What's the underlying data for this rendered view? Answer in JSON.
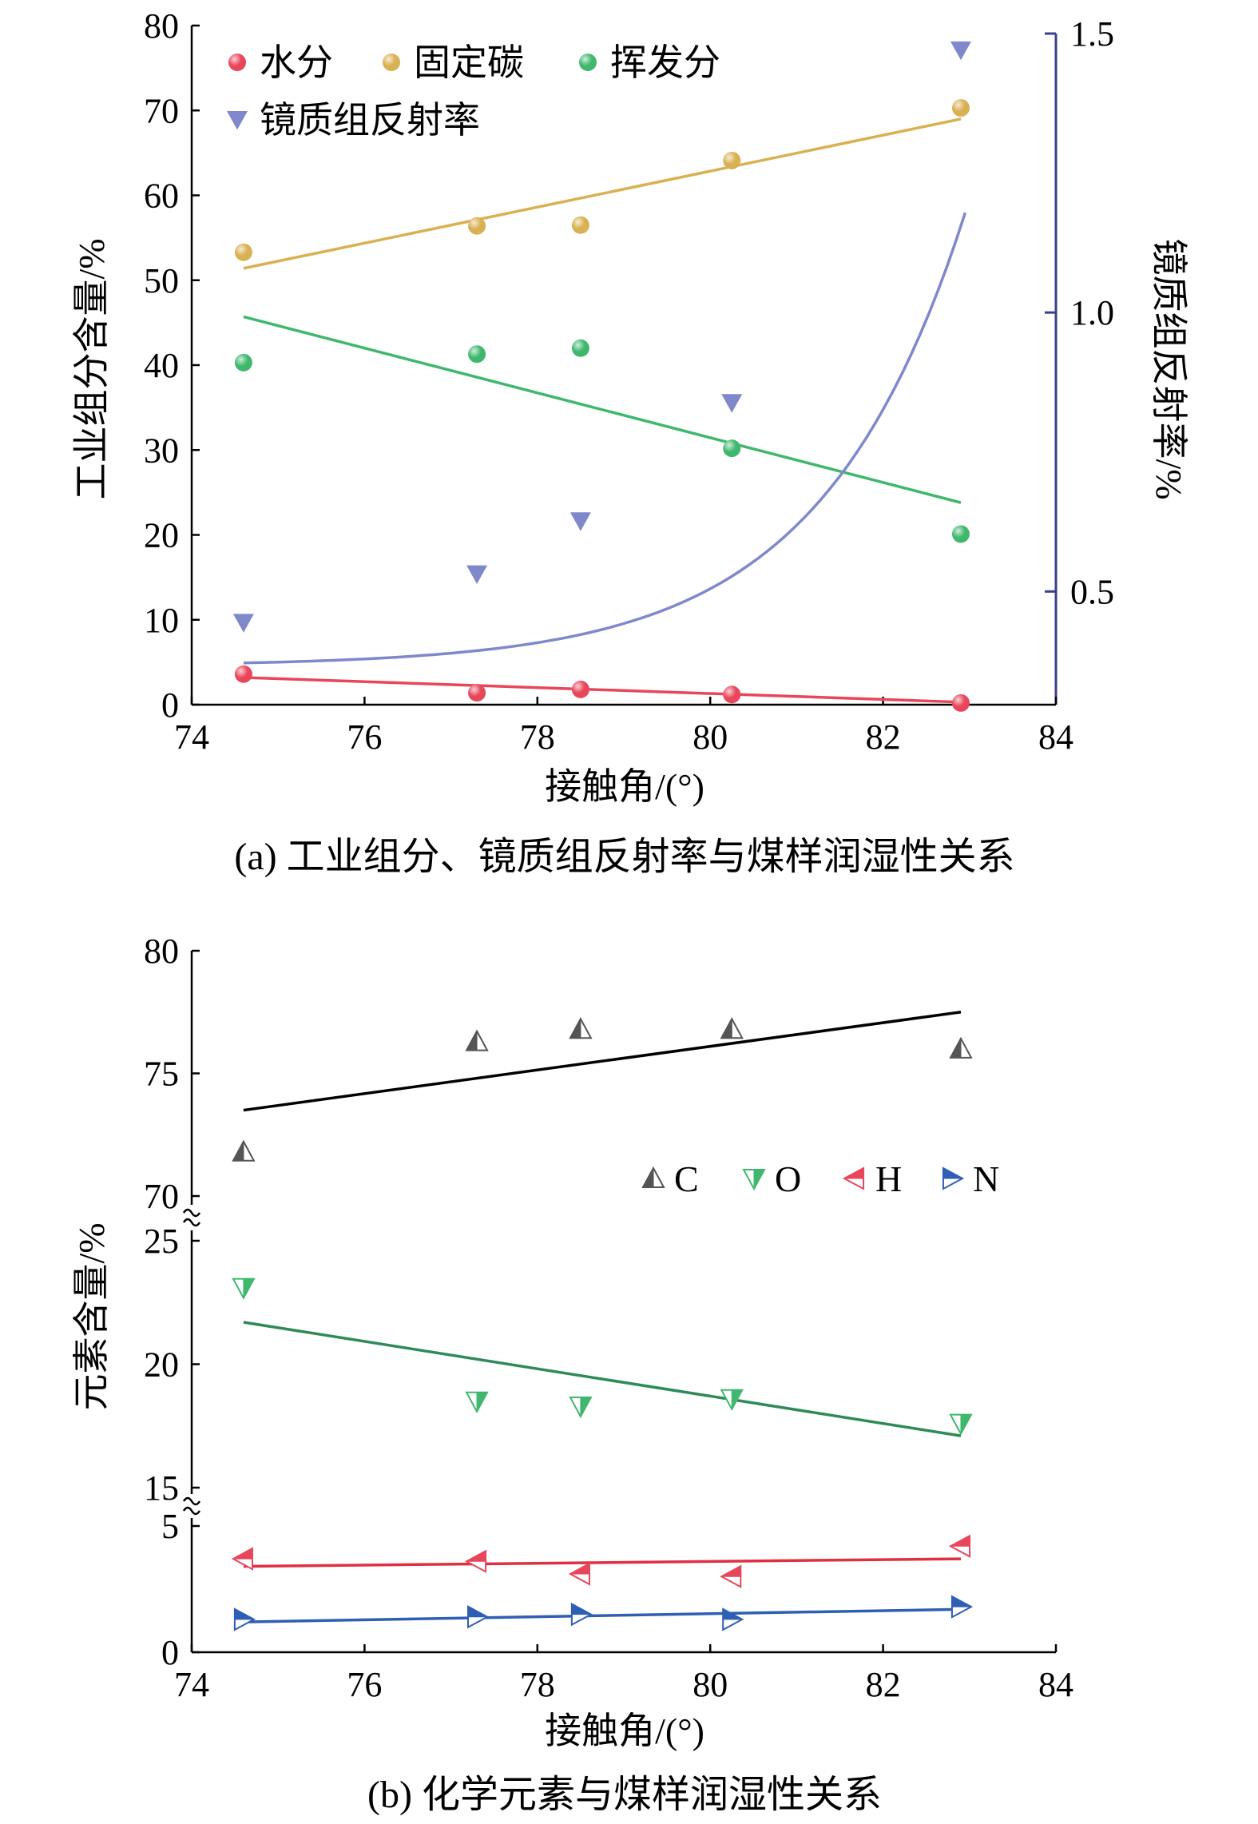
{
  "chart_data": [
    {
      "type": "scatter",
      "caption": "(a) 工业组分、镜质组反射率与煤样润湿性关系",
      "xlabel": "接触角/(°)",
      "ylabel": "工业组分含量/%",
      "y2label": "镜质组反射率/%",
      "xlim": [
        74,
        84
      ],
      "ylim": [
        0,
        80
      ],
      "y2lim": [
        0.3,
        1.5
      ],
      "xticks": [
        "74",
        "76",
        "78",
        "80",
        "82",
        "84"
      ],
      "yticks": [
        "0",
        "10",
        "20",
        "30",
        "40",
        "50",
        "60",
        "70",
        "80"
      ],
      "y2ticks": [
        "0.5",
        "1.0",
        "1.5"
      ],
      "legend_position": "top-left",
      "series": [
        {
          "name": "水分",
          "axis": "left",
          "color": "#e8465a",
          "marker": "circle",
          "x": [
            74.6,
            77.3,
            78.5,
            80.25,
            82.9
          ],
          "y": [
            3.6,
            1.4,
            1.8,
            1.2,
            0.2
          ],
          "fit_line": [
            [
              74.6,
              3.2
            ],
            [
              82.9,
              0.3
            ]
          ]
        },
        {
          "name": "固定碳",
          "axis": "left",
          "color": "#d9b052",
          "marker": "circle",
          "x": [
            74.6,
            77.3,
            78.5,
            80.25,
            82.9
          ],
          "y": [
            53.3,
            56.4,
            56.5,
            64.1,
            70.3
          ],
          "fit_line": [
            [
              74.6,
              51.4
            ],
            [
              82.9,
              69.0
            ]
          ]
        },
        {
          "name": "挥发分",
          "axis": "left",
          "color": "#3fb86e",
          "marker": "circle",
          "x": [
            74.6,
            77.3,
            78.5,
            80.25,
            82.9
          ],
          "y": [
            40.3,
            41.3,
            42.0,
            30.2,
            20.1
          ],
          "fit_line": [
            [
              74.6,
              45.7
            ],
            [
              82.9,
              23.8
            ]
          ]
        },
        {
          "name": "镜质组反射率",
          "axis": "right",
          "color": "#8088cc",
          "marker": "triangle-down",
          "x": [
            74.6,
            77.3,
            78.5,
            80.25,
            82.9
          ],
          "y": [
            0.444,
            0.531,
            0.626,
            0.838,
            1.47
          ],
          "fit_curve": {
            "model": "exponential",
            "c": 0.3665,
            "a": 0.00542,
            "k": 0.6,
            "x0": 74.6
          }
        }
      ]
    },
    {
      "type": "scatter",
      "caption": "(b) 化学元素与煤样润湿性关系",
      "xlabel": "接触角/(°)",
      "ylabel": "元素含量/%",
      "xlim": [
        74,
        84
      ],
      "xticks": [
        "74",
        "76",
        "78",
        "80",
        "82",
        "84"
      ],
      "yticks": [
        "0",
        "5",
        "15",
        "20",
        "25",
        "70",
        "75",
        "80"
      ],
      "broken_axis": [
        [
          0,
          5
        ],
        [
          15,
          25
        ],
        [
          70,
          80
        ]
      ],
      "legend_position": "right",
      "series": [
        {
          "name": "C",
          "color": "#555555",
          "marker": "triangle-up-half",
          "x": [
            74.6,
            77.3,
            78.5,
            80.25,
            82.9
          ],
          "y": [
            71.8,
            76.3,
            76.8,
            76.8,
            76.0
          ],
          "fit_line": [
            [
              74.6,
              73.5
            ],
            [
              82.9,
              77.5
            ]
          ]
        },
        {
          "name": "O",
          "color": "#3fb86e",
          "marker": "triangle-down-half",
          "x": [
            74.6,
            77.3,
            78.5,
            80.25,
            82.9
          ],
          "y": [
            23.1,
            18.5,
            18.3,
            18.6,
            17.6
          ],
          "fit_line": [
            [
              74.6,
              21.7
            ],
            [
              82.9,
              17.1
            ]
          ]
        },
        {
          "name": "H",
          "color": "#e8465a",
          "marker": "triangle-left-half",
          "x": [
            74.6,
            77.3,
            78.5,
            80.25,
            82.9
          ],
          "y": [
            3.7,
            3.6,
            3.1,
            3.0,
            4.2
          ],
          "fit_line": [
            [
              74.6,
              3.4
            ],
            [
              82.9,
              3.7
            ]
          ]
        },
        {
          "name": "N",
          "color": "#2f5fb4",
          "marker": "triangle-right-half",
          "x": [
            74.6,
            77.3,
            78.5,
            80.25,
            82.9
          ],
          "y": [
            1.3,
            1.4,
            1.5,
            1.3,
            1.8
          ],
          "fit_line": [
            [
              74.6,
              1.2
            ],
            [
              82.9,
              1.7
            ]
          ]
        }
      ]
    }
  ]
}
